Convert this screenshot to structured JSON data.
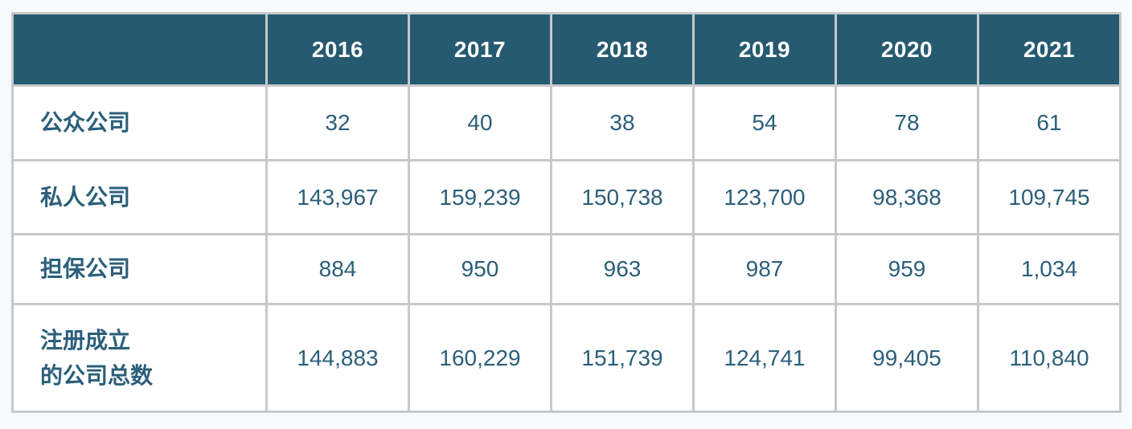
{
  "colors": {
    "header_bg": "#265a70",
    "header_text": "#ffffff",
    "body_text": "#2b5f7a",
    "border": "#c6c8ca",
    "cell_bg": "#ffffff",
    "page_bg": "#f7fafd"
  },
  "table": {
    "years": [
      "2016",
      "2017",
      "2018",
      "2019",
      "2020",
      "2021"
    ],
    "rows": [
      {
        "label": "公众公司",
        "values": [
          "32",
          "40",
          "38",
          "54",
          "78",
          "61"
        ]
      },
      {
        "label": "私人公司",
        "values": [
          "143,967",
          "159,239",
          "150,738",
          "123,700",
          "98,368",
          "109,745"
        ]
      },
      {
        "label": "担保公司",
        "values": [
          "884",
          "950",
          "963",
          "987",
          "959",
          "1,034"
        ]
      },
      {
        "label": "注册成立",
        "label2": "的公司总数",
        "values": [
          "144,883",
          "160,229",
          "151,739",
          "124,741",
          "99,405",
          "110,840"
        ]
      }
    ]
  },
  "chart_data": {
    "type": "table",
    "title": "",
    "columns": [
      "",
      "2016",
      "2017",
      "2018",
      "2019",
      "2020",
      "2021"
    ],
    "rows": [
      [
        "公众公司",
        32,
        40,
        38,
        54,
        78,
        61
      ],
      [
        "私人公司",
        143967,
        159239,
        150738,
        123700,
        98368,
        109745
      ],
      [
        "担保公司",
        884,
        950,
        963,
        987,
        959,
        1034
      ],
      [
        "注册成立的公司总数",
        144883,
        160229,
        151739,
        124741,
        99405,
        110840
      ]
    ]
  }
}
